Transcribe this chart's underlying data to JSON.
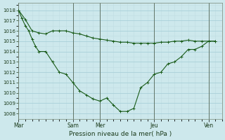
{
  "background_color": "#cde8ec",
  "grid_color_major": "#a8d0d8",
  "grid_color_minor": "#c0dde2",
  "line_color": "#1a5c1a",
  "xlabel": "Pression niveau de la mer( hPa )",
  "ylim": [
    1007.5,
    1018.7
  ],
  "yticks": [
    1008,
    1009,
    1010,
    1011,
    1012,
    1013,
    1014,
    1015,
    1016,
    1017,
    1018
  ],
  "xtick_labels": [
    "Mar",
    "Sam",
    "Mer",
    "Jeu",
    "Ven"
  ],
  "xtick_positions": [
    0,
    96,
    144,
    240,
    336
  ],
  "xlim": [
    0,
    360
  ],
  "series1_x": [
    0,
    12,
    24,
    36,
    48,
    60,
    72,
    84,
    96,
    108,
    120,
    132,
    144,
    156,
    168,
    180,
    192,
    204,
    216,
    228,
    240,
    252,
    264,
    276,
    288,
    300,
    312,
    324,
    336,
    348
  ],
  "series1_y": [
    1018.0,
    1017.1,
    1016.0,
    1015.8,
    1015.7,
    1016.0,
    1016.0,
    1016.0,
    1015.8,
    1015.7,
    1015.5,
    1015.3,
    1015.2,
    1015.1,
    1015.0,
    1014.9,
    1014.9,
    1014.8,
    1014.8,
    1014.8,
    1014.8,
    1014.9,
    1014.9,
    1015.0,
    1015.0,
    1015.1,
    1015.0,
    1015.0,
    1015.0,
    1015.0
  ],
  "series2_x": [
    0,
    6,
    12,
    18,
    24,
    30,
    36,
    48,
    60,
    72,
    84,
    96,
    108,
    120,
    132,
    144,
    156,
    168,
    180,
    192,
    204,
    216,
    228,
    240,
    252,
    264,
    276,
    288,
    300,
    312,
    324,
    336,
    348
  ],
  "series2_y": [
    1018.0,
    1017.2,
    1016.5,
    1016.0,
    1015.2,
    1014.5,
    1014.0,
    1014.0,
    1013.0,
    1012.0,
    1011.8,
    1011.0,
    1010.2,
    1009.8,
    1009.4,
    1009.2,
    1009.5,
    1008.8,
    1008.2,
    1008.2,
    1008.5,
    1010.5,
    1011.0,
    1011.8,
    1012.0,
    1012.8,
    1013.0,
    1013.5,
    1014.2,
    1014.2,
    1014.5,
    1015.0,
    1015.0
  ]
}
